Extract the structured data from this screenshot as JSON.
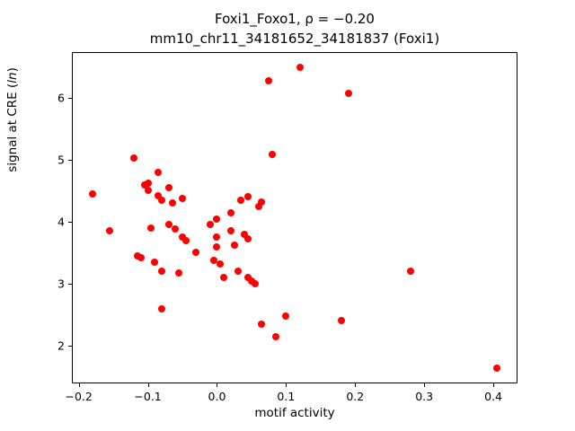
{
  "chart_data": {
    "type": "scatter",
    "title": "Foxi1_Foxo1, ρ = −0.20",
    "subtitle": "mm10_chr11_34181652_34181837 (Foxi1)",
    "xlabel": "motif activity",
    "ylabel": "signal at CRE (ln)",
    "ylabel_prefix": "signal at CRE (",
    "ylabel_italic": "ln",
    "ylabel_suffix": ")",
    "marker_color": "#ff0000",
    "grid": false,
    "legend": "none",
    "xlim": [
      -0.21,
      0.435
    ],
    "ylim": [
      1.39,
      6.74
    ],
    "xticks": [
      -0.2,
      -0.1,
      0.0,
      0.1,
      0.2,
      0.3,
      0.4
    ],
    "xtick_labels": [
      "−0.2",
      "−0.1",
      "0.0",
      "0.1",
      "0.2",
      "0.3",
      "0.4"
    ],
    "yticks": [
      2,
      3,
      4,
      5,
      6
    ],
    "ytick_labels": [
      "2",
      "3",
      "4",
      "5",
      "6"
    ],
    "points": [
      [
        -0.18,
        4.45
      ],
      [
        -0.155,
        3.85
      ],
      [
        -0.12,
        5.03
      ],
      [
        -0.115,
        3.45
      ],
      [
        -0.11,
        3.42
      ],
      [
        -0.105,
        4.6
      ],
      [
        -0.1,
        4.63
      ],
      [
        -0.1,
        4.5
      ],
      [
        -0.095,
        3.9
      ],
      [
        -0.09,
        3.35
      ],
      [
        -0.085,
        4.8
      ],
      [
        -0.085,
        4.42
      ],
      [
        -0.08,
        4.35
      ],
      [
        -0.08,
        3.2
      ],
      [
        -0.08,
        2.6
      ],
      [
        -0.07,
        4.55
      ],
      [
        -0.07,
        3.95
      ],
      [
        -0.065,
        4.3
      ],
      [
        -0.06,
        3.88
      ],
      [
        -0.055,
        3.18
      ],
      [
        -0.05,
        4.38
      ],
      [
        -0.05,
        3.75
      ],
      [
        -0.045,
        3.7
      ],
      [
        -0.03,
        3.5
      ],
      [
        -0.01,
        3.95
      ],
      [
        0.0,
        4.05
      ],
      [
        0.0,
        3.75
      ],
      [
        0.0,
        3.6
      ],
      [
        -0.005,
        3.38
      ],
      [
        0.005,
        3.32
      ],
      [
        0.01,
        3.1
      ],
      [
        0.02,
        4.15
      ],
      [
        0.02,
        3.85
      ],
      [
        0.025,
        3.62
      ],
      [
        0.03,
        3.2
      ],
      [
        0.035,
        4.35
      ],
      [
        0.045,
        4.4
      ],
      [
        0.04,
        3.8
      ],
      [
        0.045,
        3.72
      ],
      [
        0.045,
        3.1
      ],
      [
        0.05,
        3.05
      ],
      [
        0.055,
        3.0
      ],
      [
        0.06,
        4.25
      ],
      [
        0.065,
        4.32
      ],
      [
        0.065,
        2.35
      ],
      [
        0.075,
        6.27
      ],
      [
        0.08,
        5.08
      ],
      [
        0.085,
        2.15
      ],
      [
        0.1,
        2.48
      ],
      [
        0.12,
        6.5
      ],
      [
        0.18,
        2.4
      ],
      [
        0.19,
        6.07
      ],
      [
        0.28,
        3.2
      ],
      [
        0.405,
        1.63
      ]
    ]
  }
}
